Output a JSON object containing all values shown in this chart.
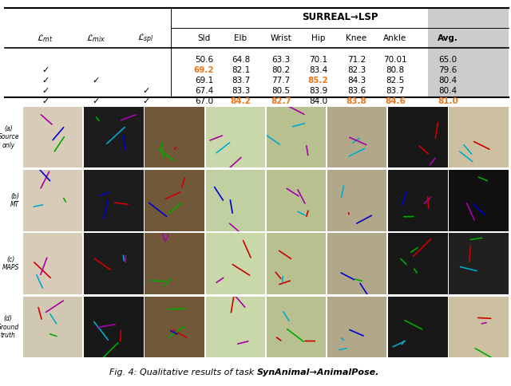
{
  "title_text": "SURREAL→LSP",
  "col_headers": [
    "Sld",
    "Elb",
    "Wrist",
    "Hip",
    "Knee",
    "Ankle",
    "Avg."
  ],
  "row_checks": [
    [
      false,
      false,
      false
    ],
    [
      true,
      false,
      false
    ],
    [
      true,
      true,
      false
    ],
    [
      true,
      false,
      true
    ],
    [
      true,
      true,
      true
    ]
  ],
  "table_data": [
    [
      "50.6",
      "64.8",
      "63.3",
      "70.1",
      "71.2",
      "70.01",
      "65.0"
    ],
    [
      "69.2",
      "82.1",
      "80.2",
      "83.4",
      "82.3",
      "80.8",
      "79.6"
    ],
    [
      "69.1",
      "83.7",
      "77.7",
      "85.2",
      "84.3",
      "82.5",
      "80.4"
    ],
    [
      "67.4",
      "83.3",
      "80.5",
      "83.9",
      "83.6",
      "83.7",
      "80.4"
    ],
    [
      "67.0",
      "84.2",
      "82.7",
      "84.0",
      "83.8",
      "84.6",
      "81.0"
    ]
  ],
  "orange_cells": [
    [
      1,
      0
    ],
    [
      2,
      3
    ],
    [
      4,
      1
    ],
    [
      4,
      2
    ],
    [
      4,
      4
    ],
    [
      4,
      5
    ],
    [
      4,
      6
    ]
  ],
  "row_labels": [
    "(a)\nSource\nonly",
    "(b)\nMT",
    "(c)\nMAPS",
    "(d)\nGround\ntruth"
  ],
  "background_color": "#ffffff",
  "lmt_label": "$\\mathcal{L}_{mt}$",
  "lmix_label": "$\\mathcal{L}_{mix}$",
  "lspl_label": "$\\mathcal{L}_{spl}$",
  "img_bg_colors": [
    [
      "#c8baa0",
      "#1e1e1e",
      "#6a5040",
      "#b8c898",
      "#b0a870",
      "#888878",
      "#1a1a1a",
      "#c8c0a0"
    ],
    [
      "#d0c8b0",
      "#181818",
      "#6a5040",
      "#b0c890",
      "#b0a870",
      "#888878",
      "#181818",
      "#1a1a1a"
    ],
    [
      "#d0c8b0",
      "#202020",
      "#705848",
      "#b8cc98",
      "#b0a870",
      "#8a8a80",
      "#181818",
      "#282828"
    ],
    [
      "#c8b8a0",
      "#181818",
      "#6a5040",
      "#c0d0a8",
      "#b0a870",
      "#888878",
      "#1a1a1a",
      "#c8c0a0"
    ]
  ],
  "caption_normal": "Fig. 4: Qualitative results of task ",
  "caption_bold": "SynAnimal→AnimalPose."
}
